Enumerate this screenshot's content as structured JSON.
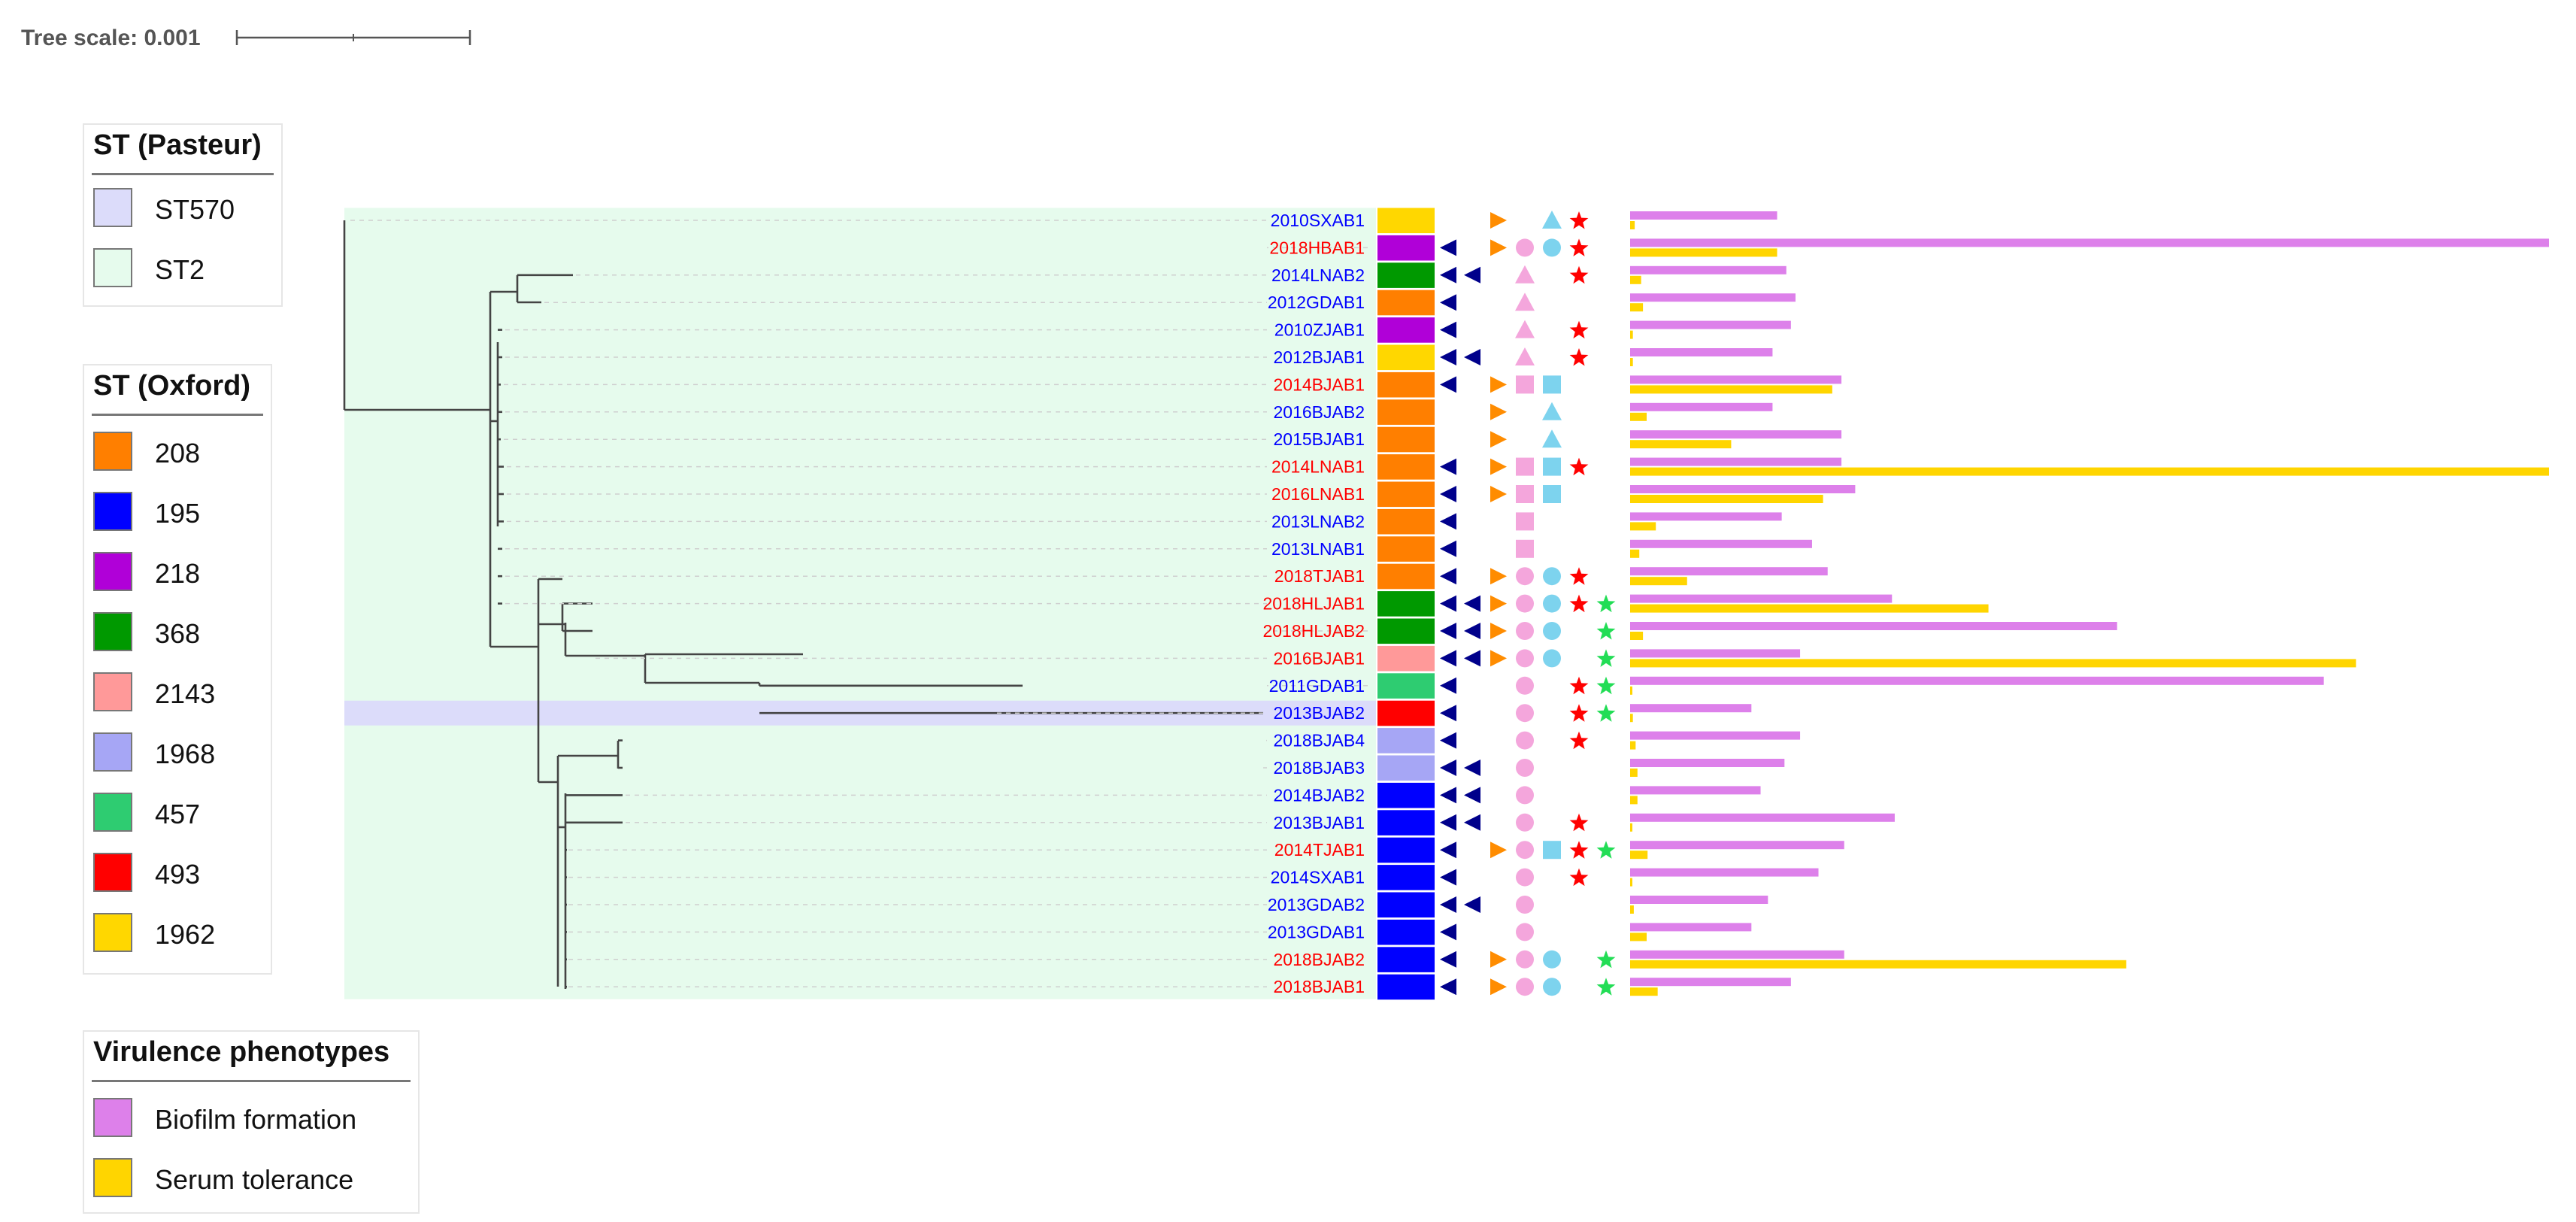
{
  "tree_scale": {
    "label": "Tree scale: 0.001"
  },
  "legends": {
    "st_pasteur": {
      "title": "ST (Pasteur)",
      "items": [
        {
          "label": "ST570",
          "color": "#dcdcfa"
        },
        {
          "label": "ST2",
          "color": "#e6fbed"
        }
      ]
    },
    "st_oxford": {
      "title": "ST (Oxford)",
      "items": [
        {
          "label": "208",
          "color": "#ff7f00"
        },
        {
          "label": "195",
          "color": "#0000ff"
        },
        {
          "label": "218",
          "color": "#b000d8"
        },
        {
          "label": "368",
          "color": "#009900"
        },
        {
          "label": "2143",
          "color": "#ff9999"
        },
        {
          "label": "1968",
          "color": "#a6a6f5"
        },
        {
          "label": "457",
          "color": "#2ecc71"
        },
        {
          "label": "493",
          "color": "#ff0000"
        },
        {
          "label": "1962",
          "color": "#ffd700"
        }
      ]
    },
    "virulence": {
      "title": "Virulence phenotypes",
      "items": [
        {
          "label": "Biofilm formation",
          "color": "#dd80ea"
        },
        {
          "label": "Serum tolerance",
          "color": "#ffd500"
        }
      ]
    }
  },
  "colors": {
    "label_red": "#ff0000",
    "label_blue": "#0000ff",
    "st2_background": "#e6fbed",
    "st570_background": "#dcdcfa",
    "tri_left": "#00008b",
    "tri_right": "#ff8c00",
    "pink": "#f4a6dc",
    "cyan": "#7dd3ee",
    "star_red": "#ff0000",
    "star_green": "#22dd55",
    "bar_biofilm": "#dd80ea",
    "bar_serum": "#ffd500"
  },
  "taxa": [
    {
      "name": "2010SXAB1",
      "label_color": "blue",
      "st": "1962",
      "markers": {
        "tl": 0,
        "tr": 1,
        "p": "",
        "c": "triangle",
        "sr": 1,
        "sg": 0
      },
      "biofilm": 0.16,
      "serum": 0.005
    },
    {
      "name": "2018HBAB1",
      "label_color": "red",
      "st": "218",
      "markers": {
        "tl": 1,
        "tr": 1,
        "p": "circle",
        "c": "circle",
        "sr": 1,
        "sg": 0
      },
      "biofilm": 1.0,
      "serum": 0.16
    },
    {
      "name": "2014LNAB2",
      "label_color": "blue",
      "st": "368",
      "markers": {
        "tl": 2,
        "tr": 0,
        "p": "triangle",
        "c": "",
        "sr": 1,
        "sg": 0
      },
      "biofilm": 0.17,
      "serum": 0.012
    },
    {
      "name": "2012GDAB1",
      "label_color": "blue",
      "st": "208",
      "markers": {
        "tl": 1,
        "tr": 0,
        "p": "triangle",
        "c": "",
        "sr": 0,
        "sg": 0
      },
      "biofilm": 0.18,
      "serum": 0.014
    },
    {
      "name": "2010ZJAB1",
      "label_color": "blue",
      "st": "218",
      "markers": {
        "tl": 1,
        "tr": 0,
        "p": "triangle",
        "c": "",
        "sr": 1,
        "sg": 0
      },
      "biofilm": 0.175,
      "serum": 0.003
    },
    {
      "name": "2012BJAB1",
      "label_color": "blue",
      "st": "1962",
      "markers": {
        "tl": 2,
        "tr": 0,
        "p": "triangle",
        "c": "",
        "sr": 1,
        "sg": 0
      },
      "biofilm": 0.155,
      "serum": 0.003
    },
    {
      "name": "2014BJAB1",
      "label_color": "red",
      "st": "208",
      "markers": {
        "tl": 1,
        "tr": 1,
        "p": "square",
        "c": "square",
        "sr": 0,
        "sg": 0
      },
      "biofilm": 0.23,
      "serum": 0.22
    },
    {
      "name": "2016BJAB2",
      "label_color": "blue",
      "st": "208",
      "markers": {
        "tl": 0,
        "tr": 1,
        "p": "",
        "c": "triangle",
        "sr": 0,
        "sg": 0
      },
      "biofilm": 0.155,
      "serum": 0.018
    },
    {
      "name": "2015BJAB1",
      "label_color": "blue",
      "st": "208",
      "markers": {
        "tl": 0,
        "tr": 1,
        "p": "",
        "c": "triangle",
        "sr": 0,
        "sg": 0
      },
      "biofilm": 0.23,
      "serum": 0.11
    },
    {
      "name": "2014LNAB1",
      "label_color": "red",
      "st": "208",
      "markers": {
        "tl": 1,
        "tr": 1,
        "p": "square",
        "c": "square",
        "sr": 1,
        "sg": 0
      },
      "biofilm": 0.23,
      "serum": 1.0
    },
    {
      "name": "2016LNAB1",
      "label_color": "red",
      "st": "208",
      "markers": {
        "tl": 1,
        "tr": 1,
        "p": "square",
        "c": "square",
        "sr": 0,
        "sg": 0
      },
      "biofilm": 0.245,
      "serum": 0.21
    },
    {
      "name": "2013LNAB2",
      "label_color": "blue",
      "st": "208",
      "markers": {
        "tl": 1,
        "tr": 0,
        "p": "square",
        "c": "",
        "sr": 0,
        "sg": 0
      },
      "biofilm": 0.165,
      "serum": 0.028
    },
    {
      "name": "2013LNAB1",
      "label_color": "blue",
      "st": "208",
      "markers": {
        "tl": 1,
        "tr": 0,
        "p": "square",
        "c": "",
        "sr": 0,
        "sg": 0
      },
      "biofilm": 0.198,
      "serum": 0.01
    },
    {
      "name": "2018TJAB1",
      "label_color": "red",
      "st": "208",
      "markers": {
        "tl": 1,
        "tr": 1,
        "p": "circle",
        "c": "circle",
        "sr": 1,
        "sg": 0
      },
      "biofilm": 0.215,
      "serum": 0.062
    },
    {
      "name": "2018HLJAB1",
      "label_color": "red",
      "st": "368",
      "markers": {
        "tl": 2,
        "tr": 1,
        "p": "circle",
        "c": "circle",
        "sr": 1,
        "sg": 1
      },
      "biofilm": 0.285,
      "serum": 0.39
    },
    {
      "name": "2018HLJAB2",
      "label_color": "red",
      "st": "368",
      "markers": {
        "tl": 2,
        "tr": 1,
        "p": "circle",
        "c": "circle",
        "sr": 0,
        "sg": 1
      },
      "biofilm": 0.53,
      "serum": 0.014
    },
    {
      "name": "2016BJAB1",
      "label_color": "red",
      "st": "2143",
      "markers": {
        "tl": 2,
        "tr": 1,
        "p": "circle",
        "c": "circle",
        "sr": 0,
        "sg": 1
      },
      "biofilm": 0.185,
      "serum": 0.79
    },
    {
      "name": "2011GDAB1",
      "label_color": "blue",
      "st": "457",
      "markers": {
        "tl": 1,
        "tr": 0,
        "p": "circle",
        "c": "",
        "sr": 1,
        "sg": 1
      },
      "biofilm": 0.755,
      "serum": 0.0
    },
    {
      "name": "2013BJAB2",
      "label_color": "blue",
      "st": "493",
      "markers": {
        "tl": 1,
        "tr": 0,
        "p": "circle",
        "c": "",
        "sr": 1,
        "sg": 1
      },
      "biofilm": 0.132,
      "serum": 0.003
    },
    {
      "name": "2018BJAB4",
      "label_color": "blue",
      "st": "1968",
      "markers": {
        "tl": 1,
        "tr": 0,
        "p": "circle",
        "c": "",
        "sr": 1,
        "sg": 0
      },
      "biofilm": 0.185,
      "serum": 0.006
    },
    {
      "name": "2018BJAB3",
      "label_color": "blue",
      "st": "1968",
      "markers": {
        "tl": 2,
        "tr": 0,
        "p": "circle",
        "c": "",
        "sr": 0,
        "sg": 0
      },
      "biofilm": 0.168,
      "serum": 0.008
    },
    {
      "name": "2014BJAB2",
      "label_color": "blue",
      "st": "195",
      "markers": {
        "tl": 2,
        "tr": 0,
        "p": "circle",
        "c": "",
        "sr": 0,
        "sg": 0
      },
      "biofilm": 0.142,
      "serum": 0.008
    },
    {
      "name": "2013BJAB1",
      "label_color": "blue",
      "st": "195",
      "markers": {
        "tl": 2,
        "tr": 0,
        "p": "circle",
        "c": "",
        "sr": 1,
        "sg": 0
      },
      "biofilm": 0.288,
      "serum": 0.0
    },
    {
      "name": "2014TJAB1",
      "label_color": "red",
      "st": "195",
      "markers": {
        "tl": 1,
        "tr": 1,
        "p": "circle",
        "c": "square",
        "sr": 1,
        "sg": 1
      },
      "biofilm": 0.233,
      "serum": 0.019
    },
    {
      "name": "2014SXAB1",
      "label_color": "blue",
      "st": "195",
      "markers": {
        "tl": 1,
        "tr": 0,
        "p": "circle",
        "c": "",
        "sr": 1,
        "sg": 0
      },
      "biofilm": 0.205,
      "serum": 0.0
    },
    {
      "name": "2013GDAB2",
      "label_color": "blue",
      "st": "195",
      "markers": {
        "tl": 2,
        "tr": 0,
        "p": "circle",
        "c": "",
        "sr": 0,
        "sg": 0
      },
      "biofilm": 0.15,
      "serum": 0.004
    },
    {
      "name": "2013GDAB1",
      "label_color": "blue",
      "st": "195",
      "markers": {
        "tl": 1,
        "tr": 0,
        "p": "circle",
        "c": "",
        "sr": 0,
        "sg": 0
      },
      "biofilm": 0.132,
      "serum": 0.018
    },
    {
      "name": "2018BJAB2",
      "label_color": "red",
      "st": "195",
      "markers": {
        "tl": 1,
        "tr": 1,
        "p": "circle",
        "c": "circle",
        "sr": 0,
        "sg": 1
      },
      "biofilm": 0.233,
      "serum": 0.54
    },
    {
      "name": "2018BJAB1",
      "label_color": "red",
      "st": "195",
      "markers": {
        "tl": 1,
        "tr": 1,
        "p": "circle",
        "c": "circle",
        "sr": 0,
        "sg": 1
      },
      "biofilm": 0.175,
      "serum": 0.03
    }
  ]
}
